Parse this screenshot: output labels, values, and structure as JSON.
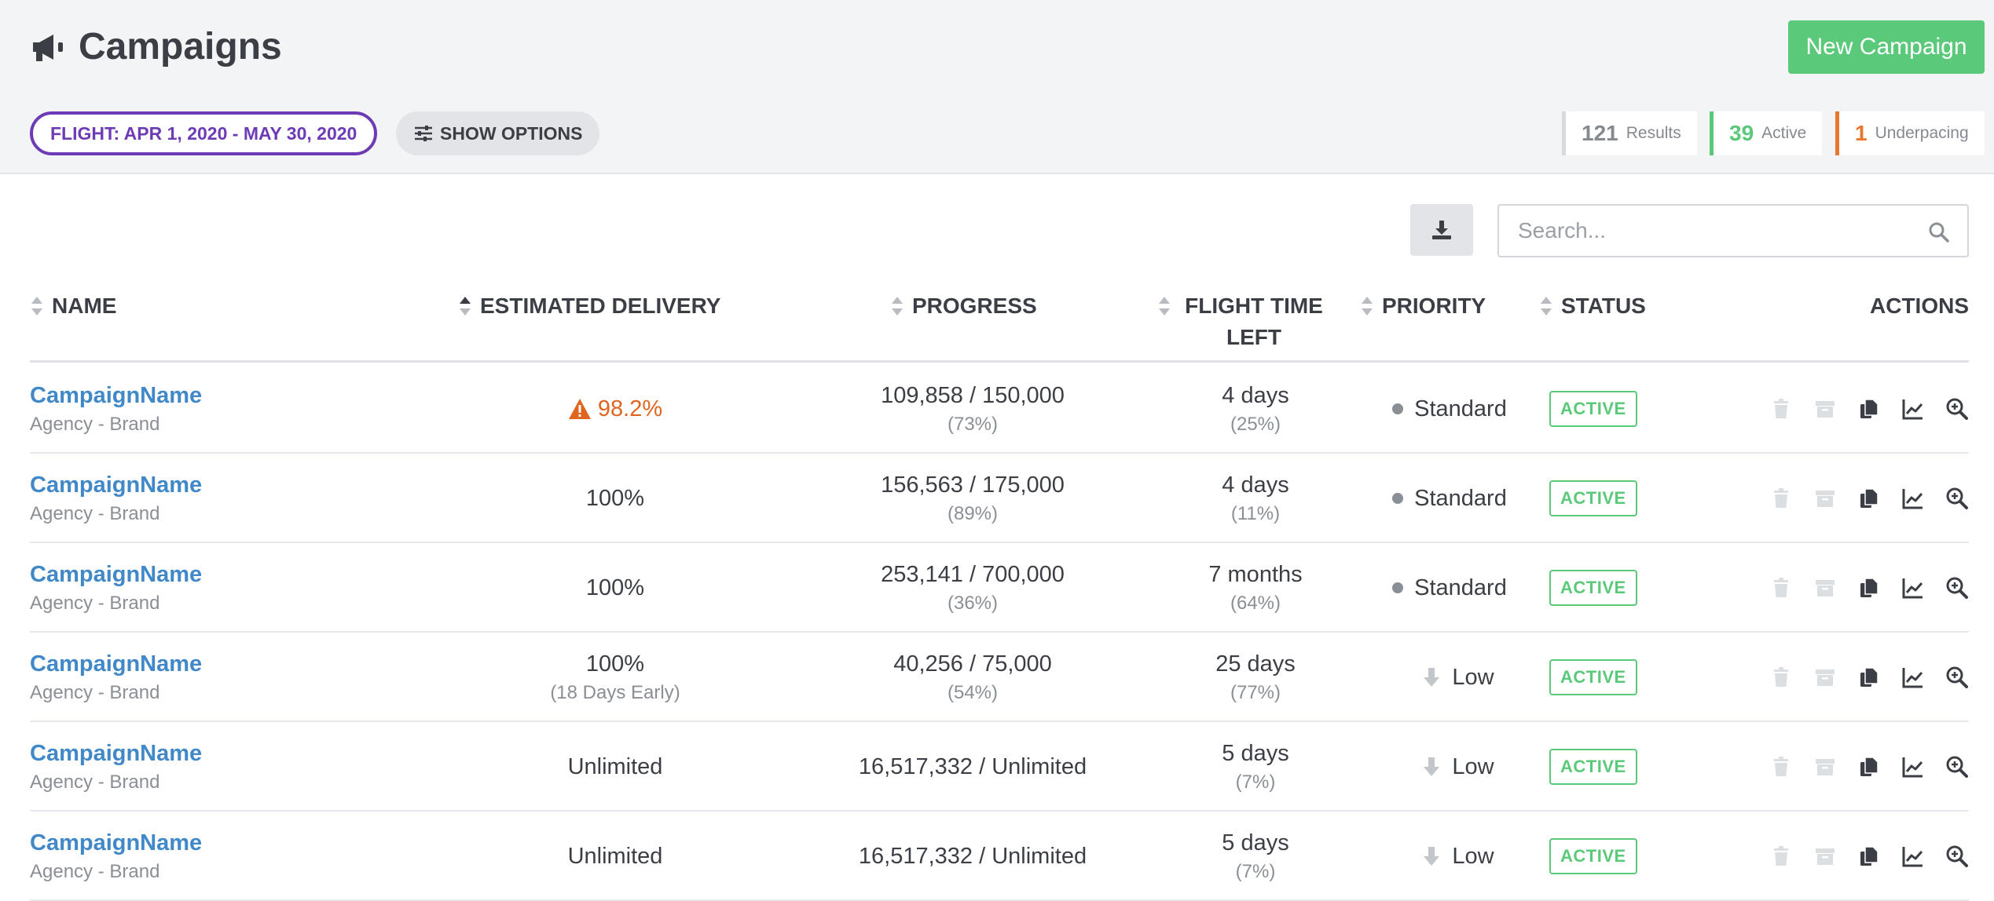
{
  "header": {
    "title": "Campaigns",
    "new_button": "New Campaign",
    "flight_filter": "FLIGHT: APR 1, 2020 - MAY 30, 2020",
    "show_options": "SHOW OPTIONS",
    "stats": {
      "results_count": "121",
      "results_label": "Results",
      "active_count": "39",
      "active_label": "Active",
      "underpacing_count": "1",
      "underpacing_label": "Underpacing"
    }
  },
  "toolbar": {
    "search_placeholder": "Search..."
  },
  "table": {
    "headers": {
      "name": "NAME",
      "estimated_delivery": "ESTIMATED DELIVERY",
      "progress": "PROGRESS",
      "flight_time_left": "FLIGHT TIME LEFT",
      "priority": "PRIORITY",
      "status": "STATUS",
      "actions": "ACTIONS"
    },
    "rows": [
      {
        "name": "CampaignName",
        "sub": "Agency - Brand",
        "delivery": "98.2%",
        "delivery_sub": "",
        "delivery_warning": true,
        "progress": "109,858 / 150,000",
        "progress_sub": "(73%)",
        "flight": "4 days",
        "flight_sub": "(25%)",
        "priority": "Standard",
        "priority_icon": "dot",
        "status": "ACTIVE"
      },
      {
        "name": "CampaignName",
        "sub": "Agency - Brand",
        "delivery": "100%",
        "delivery_sub": "",
        "delivery_warning": false,
        "progress": "156,563 / 175,000",
        "progress_sub": "(89%)",
        "flight": "4 days",
        "flight_sub": "(11%)",
        "priority": "Standard",
        "priority_icon": "dot",
        "status": "ACTIVE"
      },
      {
        "name": "CampaignName",
        "sub": "Agency - Brand",
        "delivery": "100%",
        "delivery_sub": "",
        "delivery_warning": false,
        "progress": "253,141 / 700,000",
        "progress_sub": "(36%)",
        "flight": "7 months",
        "flight_sub": "(64%)",
        "priority": "Standard",
        "priority_icon": "dot",
        "status": "ACTIVE"
      },
      {
        "name": "CampaignName",
        "sub": "Agency - Brand",
        "delivery": "100%",
        "delivery_sub": "(18 Days Early)",
        "delivery_warning": false,
        "progress": "40,256 / 75,000",
        "progress_sub": "(54%)",
        "flight": "25 days",
        "flight_sub": "(77%)",
        "priority": "Low",
        "priority_icon": "arrow-down",
        "status": "ACTIVE"
      },
      {
        "name": "CampaignName",
        "sub": "Agency - Brand",
        "delivery": "Unlimited",
        "delivery_sub": "",
        "delivery_warning": false,
        "progress": "16,517,332 / Unlimited",
        "progress_sub": "",
        "flight": "5 days",
        "flight_sub": "(7%)",
        "priority": "Low",
        "priority_icon": "arrow-down",
        "status": "ACTIVE"
      },
      {
        "name": "CampaignName",
        "sub": "Agency - Brand",
        "delivery": "Unlimited",
        "delivery_sub": "",
        "delivery_warning": false,
        "progress": "16,517,332 / Unlimited",
        "progress_sub": "",
        "flight": "5 days",
        "flight_sub": "(7%)",
        "priority": "Low",
        "priority_icon": "arrow-down",
        "status": "ACTIVE"
      }
    ]
  },
  "colors": {
    "primary_green": "#5bc97a",
    "purple": "#6d3bb5",
    "link_blue": "#4188c9",
    "warning_orange": "#e0651e"
  }
}
